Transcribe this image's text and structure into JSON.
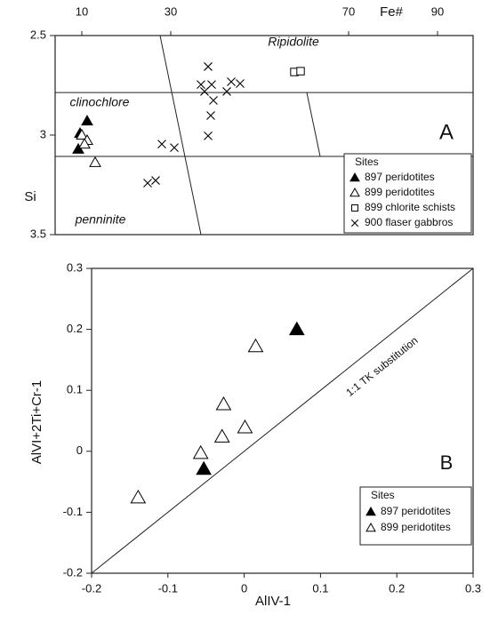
{
  "chart_data": [
    {
      "type": "scatter",
      "x_label": "Fe#",
      "y_label": "Si",
      "xlim": [
        4,
        98
      ],
      "xticks": [
        10,
        30,
        70,
        90
      ],
      "ylim": [
        3.5,
        2.5
      ],
      "yticks": [
        2.5,
        3,
        3.5
      ],
      "annotations": [
        "Ripidolite",
        "clinochlore",
        "penninite",
        "A"
      ],
      "boundaries": [
        {
          "x": [
            4,
            98
          ],
          "y": [
            2.786,
            2.786
          ]
        },
        {
          "x": [
            4,
            98
          ],
          "y": [
            3.107,
            3.107
          ]
        },
        {
          "x": [
            27.6,
            36.8
          ],
          "y": [
            2.5,
            3.5
          ]
        },
        {
          "x": [
            60.6,
            63.6
          ],
          "y": [
            2.786,
            3.107
          ]
        }
      ],
      "legend_title": "Sites",
      "series": [
        {
          "name": "897 peridotites",
          "marker": "filled-triangle",
          "color": "#000000",
          "x": [
            11.2,
            9.6,
            9.2
          ],
          "y": [
            2.929,
            2.991,
            3.071
          ]
        },
        {
          "name": "899 peridotites",
          "marker": "open-triangle",
          "color": "#000000",
          "x": [
            10,
            11.2,
            10.6,
            13
          ],
          "y": [
            3.0,
            3.027,
            3.045,
            3.138
          ]
        },
        {
          "name": "899 chlorite schists",
          "marker": "open-square",
          "color": "#000000",
          "x": [
            57.8,
            59.2
          ],
          "y": [
            2.683,
            2.679
          ]
        },
        {
          "name": "900 flaser gabbros",
          "marker": "cross",
          "color": "#000000",
          "x": [
            38.4,
            36.8,
            39.2,
            37.6,
            39.6,
            39.0,
            38.4,
            42.6,
            43.6,
            45.6,
            28.0,
            30.8,
            24.8,
            26.6
          ],
          "y": [
            2.656,
            2.746,
            2.746,
            2.781,
            2.826,
            2.902,
            3.004,
            2.781,
            2.732,
            2.741,
            3.045,
            3.063,
            3.241,
            3.228
          ]
        }
      ]
    },
    {
      "type": "scatter",
      "x_label": "AlIV-1",
      "y_label": "AlVI+2Ti+Cr-1",
      "xlim": [
        -0.2,
        0.3
      ],
      "xticks": [
        -0.2,
        -0.1,
        0,
        0.1,
        0.2,
        0.3
      ],
      "ylim": [
        -0.2,
        0.3
      ],
      "yticks": [
        -0.2,
        -0.1,
        0,
        0.1,
        0.2,
        0.3
      ],
      "annotations": [
        "B"
      ],
      "reference_line": {
        "label": "1:1 TK substitution",
        "x": [
          -0.2,
          0.3
        ],
        "y": [
          -0.2,
          0.3
        ]
      },
      "legend_title": "Sites",
      "series": [
        {
          "name": "897 peridotites",
          "marker": "filled-triangle",
          "color": "#000000",
          "x": [
            0.069,
            -0.053
          ],
          "y": [
            0.2,
            -0.029
          ]
        },
        {
          "name": "899 peridotites",
          "marker": "open-triangle",
          "color": "#000000",
          "x": [
            -0.139,
            -0.057,
            -0.029,
            -0.027,
            0.001,
            0.015
          ],
          "y": [
            -0.076,
            -0.003,
            0.024,
            0.077,
            0.039,
            0.172
          ]
        }
      ]
    }
  ]
}
